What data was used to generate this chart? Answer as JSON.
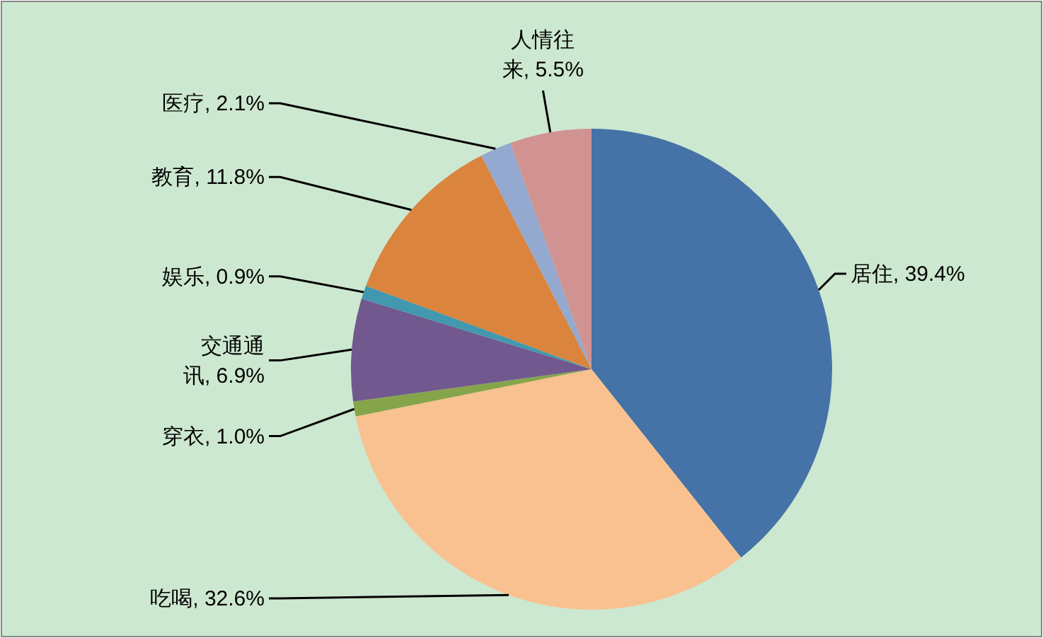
{
  "chart_data": {
    "type": "pie",
    "categories": [
      "居住",
      "吃喝",
      "穿衣",
      "交通通讯",
      "娱乐",
      "教育",
      "医疗",
      "人情往来"
    ],
    "values": [
      39.4,
      32.6,
      1.0,
      6.9,
      0.9,
      11.8,
      2.1,
      5.5
    ],
    "colors": [
      "#4572a7",
      "#f9c18f",
      "#86a44a",
      "#71588f",
      "#4198af",
      "#db843d",
      "#93a9cf",
      "#d19392"
    ],
    "value_labels": [
      ", 39.4%",
      ", 32.6%",
      ", 1.0%",
      ", 6.9%",
      ", 0.9%",
      ", 11.8%",
      ", 2.1%",
      ", 5.5%"
    ]
  }
}
